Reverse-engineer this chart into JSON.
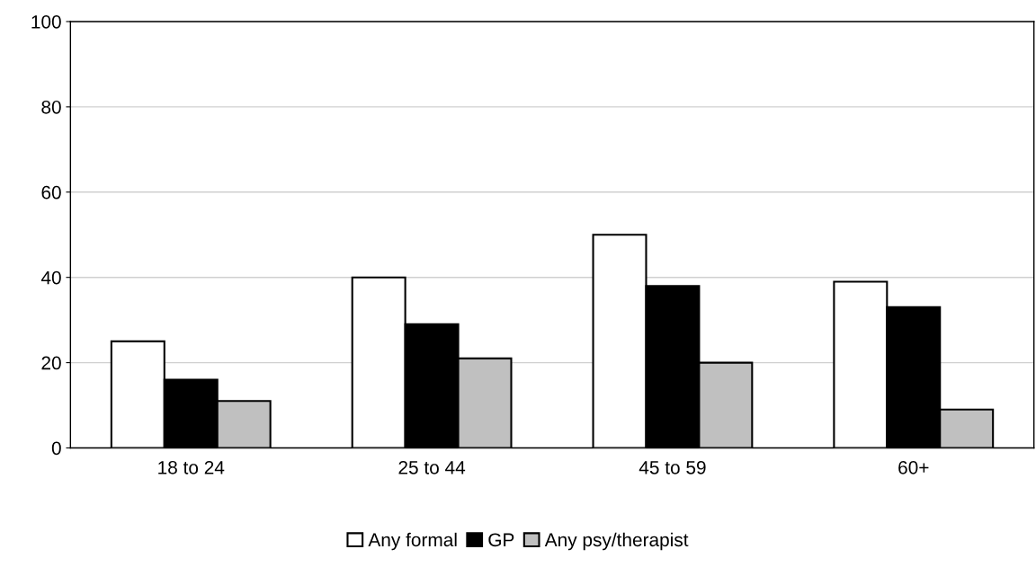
{
  "chart_data": {
    "type": "bar",
    "categories": [
      "18 to 24",
      "25 to 44",
      "45 to 59",
      "60+"
    ],
    "series": [
      {
        "name": "Any formal",
        "color": "#ffffff",
        "values": [
          25,
          40,
          50,
          39
        ]
      },
      {
        "name": "GP",
        "color": "#000000",
        "values": [
          16,
          29,
          38,
          33
        ]
      },
      {
        "name": "Any psy/therapist",
        "color": "#c0c0c0",
        "values": [
          11,
          21,
          20,
          9
        ]
      }
    ],
    "ylim": [
      0,
      100
    ],
    "yticks": [
      0,
      20,
      40,
      60,
      80,
      100
    ],
    "grid": "y",
    "legend": "bottom"
  }
}
